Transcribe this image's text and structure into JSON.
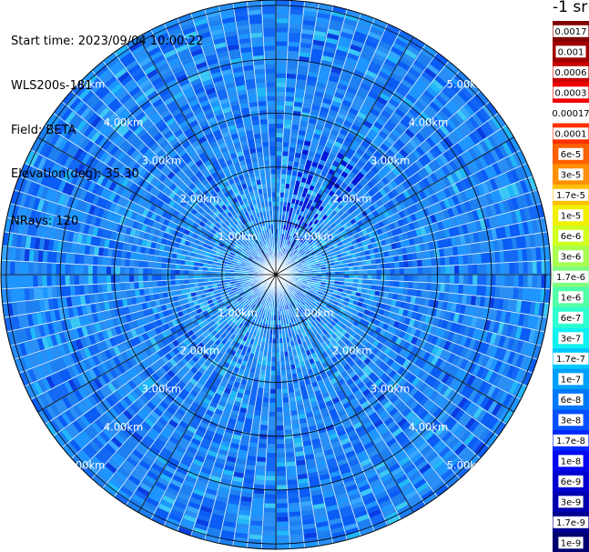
{
  "header": {
    "start_time": "Start time: 2023/09/04 10:00:22",
    "instrument": "WLS200s-181",
    "field": "Field: BETA",
    "elevation": "Elevation(deg): 35.30",
    "nrays": "NRays: 120"
  },
  "colorbar": {
    "unit": "-1 sr",
    "labels": [
      "0.0017",
      "0.001",
      "0.0006",
      "0.0003",
      "0.00017",
      "0.0001",
      "6e-5",
      "3e-5",
      "1.7e-5",
      "1e-5",
      "6e-6",
      "3e-6",
      "1.7e-6",
      "1e-6",
      "6e-7",
      "3e-7",
      "1.7e-7",
      "1e-7",
      "6e-8",
      "3e-8",
      "1.7e-8",
      "1e-8",
      "6e-9",
      "3e-9",
      "1.7e-9",
      "1e-9"
    ],
    "colors": [
      "#800000",
      "#a00000",
      "#c80000",
      "#f00000",
      "#ffffff",
      "#ff3000",
      "#ff6000",
      "#ff9000",
      "#ffc000",
      "#f0f000",
      "#d0ff20",
      "#a8ff50",
      "#80ff80",
      "#50ffa8",
      "#30ffd0",
      "#10f0f0",
      "#00c8ff",
      "#00a0ff",
      "#0078ff",
      "#0050ff",
      "#0028ff",
      "#0008f0",
      "#0000d0",
      "#0000b0",
      "#000090",
      "#000070"
    ]
  },
  "chart_data": {
    "type": "heatmap",
    "projection": "polar PPI",
    "field": "BETA",
    "n_rays": 120,
    "elevation_deg": 35.3,
    "range_rings_km": [
      1,
      2,
      3,
      4,
      5
    ],
    "ring_labels": [
      "1.00km",
      "2.00km",
      "3.00km",
      "4.00km",
      "5.00km"
    ],
    "max_range_km": 5.1,
    "azimuth_spokes_deg": [
      0,
      30,
      60,
      90,
      120,
      150,
      180,
      210,
      240,
      270,
      300,
      330
    ],
    "colorscale": "log",
    "color_range": [
      1e-09,
      0.0017
    ],
    "dominant_value_range": [
      3e-08,
      3e-07
    ],
    "description_of_values": "mostly 1e-7 to 3e-8 (blue) with cyan 1.7e-7 streaks; lighter cyan near center within ~1 km; dark blue 1e-8 speckles north-north-east near 0.5-1.5 km"
  }
}
